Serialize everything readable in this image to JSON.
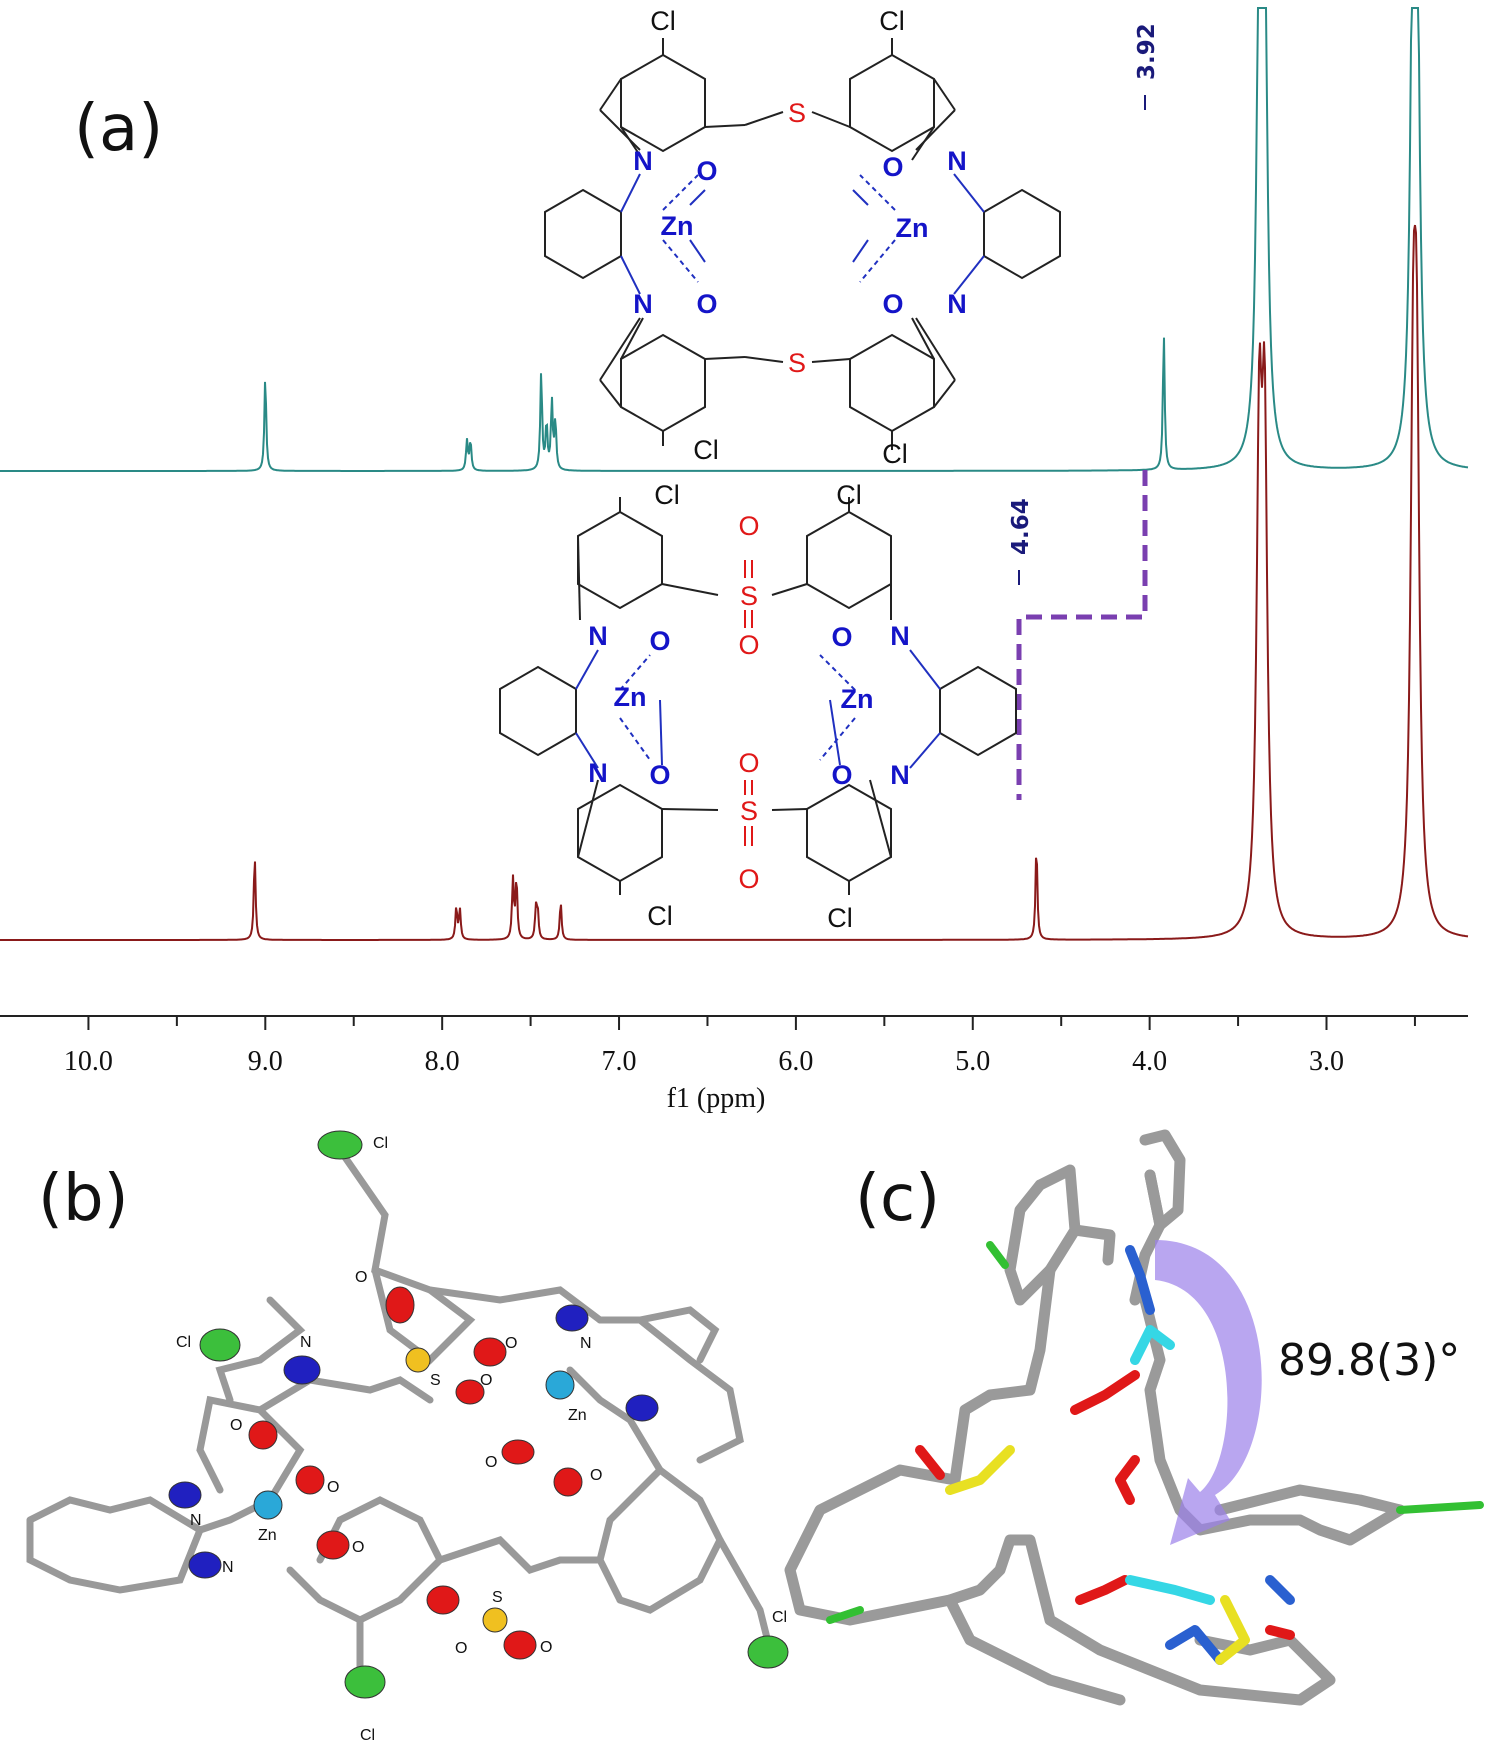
{
  "panels": {
    "a": "(a)",
    "b": "(b)",
    "c": "(c)"
  },
  "chart_data": {
    "type": "line",
    "title": "",
    "xlabel": "f1 (ppm)",
    "ylabel": "",
    "xlim": [
      10.5,
      2.2
    ],
    "x_reversed": true,
    "ticks": [
      "10.0",
      "9.0",
      "8.0",
      "7.0",
      "6.0",
      "5.0",
      "4.0",
      "3.0"
    ],
    "grid": false,
    "legend": "none",
    "annotations": [
      {
        "text": "3.92",
        "x": 3.92,
        "series": "top"
      },
      {
        "text": "4.64",
        "x": 4.64,
        "series": "bottom"
      }
    ],
    "series": [
      {
        "color": "#2a8a86",
        "peaks": [
          {
            "x": 9.0,
            "h": 0.35
          },
          {
            "x": 7.86,
            "h": 0.11
          },
          {
            "x": 7.84,
            "h": 0.11
          },
          {
            "x": 7.44,
            "h": 0.36
          },
          {
            "x": 7.41,
            "h": 0.17
          },
          {
            "x": 7.38,
            "h": 0.25
          },
          {
            "x": 7.36,
            "h": 0.18
          },
          {
            "x": 3.92,
            "h": 0.5
          },
          {
            "x": 3.38,
            "h": 1.7
          },
          {
            "x": 3.35,
            "h": 1.7
          },
          {
            "x": 2.51,
            "h": 1.7
          },
          {
            "x": 2.49,
            "h": 1.7
          }
        ]
      },
      {
        "color": "#8a1a1a",
        "peaks": [
          {
            "x": 9.06,
            "h": 0.31
          },
          {
            "x": 7.92,
            "h": 0.12
          },
          {
            "x": 7.9,
            "h": 0.11
          },
          {
            "x": 7.6,
            "h": 0.22
          },
          {
            "x": 7.58,
            "h": 0.22
          },
          {
            "x": 7.47,
            "h": 0.11
          },
          {
            "x": 7.46,
            "h": 0.1
          },
          {
            "x": 7.33,
            "h": 0.14
          },
          {
            "x": 4.64,
            "h": 0.35
          },
          {
            "x": 3.38,
            "h": 1.7
          },
          {
            "x": 3.35,
            "h": 1.7
          },
          {
            "x": 2.51,
            "h": 1.7
          },
          {
            "x": 2.49,
            "h": 1.7
          }
        ]
      }
    ]
  },
  "structure_top": {
    "cl_top_left": "Cl",
    "cl_top_right": "Cl",
    "cl_bottom_left": "Cl",
    "cl_bottom_right": "Cl",
    "s_top": "S",
    "s_bottom": "S",
    "n1": "N",
    "n2": "N",
    "n3": "N",
    "n4": "N",
    "o1": "O",
    "o2": "O",
    "o3": "O",
    "o4": "O",
    "zn_left": "Zn",
    "zn_right": "Zn"
  },
  "structure_bottom": {
    "cl_top_left": "Cl",
    "cl_top_right": "Cl",
    "cl_bottom_left": "Cl",
    "cl_bottom_right": "Cl",
    "s_top": "S",
    "s_bottom": "S",
    "so_top_1": "O",
    "so_top_2": "O",
    "so_bottom_1": "O",
    "so_bottom_2": "O",
    "n1": "N",
    "n2": "N",
    "n3": "N",
    "n4": "N",
    "o1": "O",
    "o2": "O",
    "o3": "O",
    "o4": "O",
    "zn_left": "Zn",
    "zn_right": "Zn"
  },
  "crystal_labels": {
    "cl_top": "Cl",
    "cl_left": "Cl",
    "cl_bottom": "Cl",
    "cl_right": "Cl",
    "o_a": "O",
    "o_b": "O",
    "o_c": "O",
    "o_d": "O",
    "o_e": "O",
    "o_f": "O",
    "o_g": "O",
    "o_h": "O",
    "o_i": "O",
    "o_j": "O",
    "n_a": "N",
    "n_b": "N",
    "n_c": "N",
    "n_d": "N",
    "s_a": "S",
    "s_b": "S",
    "zn_a": "Zn",
    "zn_b": "Zn"
  },
  "angle_label": "89.8(3)°"
}
